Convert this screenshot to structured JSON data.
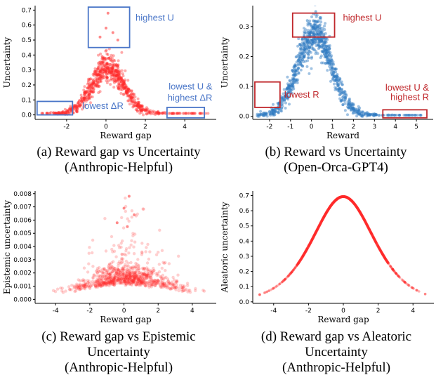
{
  "colors": {
    "red": "#ff2a2a",
    "blue": "#2e7bc0",
    "annot_blue": "#4a76c8",
    "annot_red": "#c0282c"
  },
  "chart_data": [
    {
      "id": "a",
      "type": "scatter",
      "caption": [
        "(a) Reward gap vs Uncertainty",
        "(Anthropic-Helpful)"
      ],
      "xlabel": "Reward gap",
      "ylabel": "Uncertainty",
      "xlim": [
        -3.6,
        5.6
      ],
      "ylim": [
        -0.03,
        0.73
      ],
      "xticks": [
        -2,
        0,
        2,
        4
      ],
      "yticks": [
        0.0,
        0.1,
        0.2,
        0.3,
        0.4,
        0.5,
        0.6,
        0.7
      ],
      "ytick_labels": [
        "0.0",
        "0.1",
        "0.2",
        "0.3",
        "0.4",
        "0.5",
        "0.6",
        "0.7"
      ],
      "marker_color": "red",
      "model": {
        "peak": 0.3,
        "center": 0.1,
        "width": 1.05,
        "floor": 0.01,
        "spread": 0.05,
        "n": 800,
        "xmin": -3.3,
        "xmax": 5.3
      },
      "points": [
        [
          0.1,
          0.68
        ],
        [
          0.0,
          0.58
        ],
        [
          0.35,
          0.55
        ],
        [
          -0.3,
          0.52
        ],
        [
          0.6,
          0.5
        ]
      ],
      "annotations": [
        {
          "text": "highest U",
          "box": [
            -0.9,
            0.45,
            1.2,
            0.72
          ],
          "label_at": [
            1.5,
            0.63
          ],
          "anchor": "start",
          "color": "annot_blue"
        },
        {
          "text": "lowest ΔR",
          "box": [
            -3.5,
            0.0,
            -1.7,
            0.09
          ],
          "label_at": [
            -1.2,
            0.04
          ],
          "anchor": "start",
          "color": "annot_blue"
        },
        {
          "text": "lowest U &",
          "box": [
            3.1,
            -0.02,
            5.0,
            0.05
          ],
          "label_at": [
            5.4,
            0.17
          ],
          "anchor": "end",
          "color": "annot_blue"
        },
        {
          "text": "highest ΔR",
          "label_at": [
            5.4,
            0.095
          ],
          "anchor": "end",
          "color": "annot_blue"
        }
      ]
    },
    {
      "id": "b",
      "type": "scatter",
      "caption": [
        "(b) Reward vs Uncertainty",
        "(Open-Orca-GPT4)"
      ],
      "xlabel": "Reward",
      "ylabel": "Uncertainty",
      "xlim": [
        -2.8,
        5.8
      ],
      "ylim": [
        -0.01,
        0.37
      ],
      "xticks": [
        -2,
        -1,
        0,
        1,
        2,
        3,
        4,
        5
      ],
      "yticks": [
        0.0,
        0.1,
        0.2,
        0.3
      ],
      "ytick_labels": [
        "0.0",
        "0.1",
        "0.2",
        "0.3"
      ],
      "marker_color": "blue",
      "model": {
        "peak": 0.27,
        "center": 0.15,
        "width": 1.05,
        "floor": 0.004,
        "spread": 0.035,
        "n": 900,
        "xmin": -2.6,
        "xmax": 5.3
      },
      "points": [
        [
          0.2,
          0.35
        ],
        [
          0.4,
          0.33
        ],
        [
          -0.2,
          0.32
        ]
      ],
      "annotations": [
        {
          "text": "highest U",
          "box": [
            -0.9,
            0.265,
            1.1,
            0.345
          ],
          "label_at": [
            1.5,
            0.32
          ],
          "anchor": "start",
          "color": "annot_red"
        },
        {
          "text": "lowest R",
          "box": [
            -2.7,
            0.03,
            -1.5,
            0.115
          ],
          "label_at": [
            -1.3,
            0.063
          ],
          "anchor": "start",
          "color": "annot_red"
        },
        {
          "text": "lowest U &",
          "box": [
            3.4,
            -0.005,
            5.5,
            0.022
          ],
          "label_at": [
            5.6,
            0.086
          ],
          "anchor": "end",
          "color": "annot_red"
        },
        {
          "text": "highest R",
          "label_at": [
            5.6,
            0.054
          ],
          "anchor": "end",
          "color": "annot_red"
        }
      ]
    },
    {
      "id": "c",
      "type": "scatter",
      "caption": [
        "(c) Reward gap vs Epistemic",
        "Uncertainty",
        "(Anthropic-Helpful)"
      ],
      "xlabel": "Reward gap",
      "ylabel": "Epistemic uncertainty",
      "xlim": [
        -5.2,
        5.4
      ],
      "ylim": [
        -0.0003,
        0.0082
      ],
      "xticks": [
        -4,
        -2,
        0,
        2,
        4
      ],
      "yticks": [
        0.0,
        0.001,
        0.002,
        0.003,
        0.004,
        0.005,
        0.006,
        0.007,
        0.008
      ],
      "ytick_labels": [
        "0.000",
        "0.001",
        "0.002",
        "0.003",
        "0.004",
        "0.005",
        "0.006",
        "0.007",
        "0.008"
      ],
      "marker_color": "red",
      "model": {
        "type": "cloud",
        "peak": 0.0011,
        "center": 0.2,
        "width": 1.6,
        "spread": 0.0009,
        "n": 900,
        "xmin": -4.2,
        "xmax": 4.8
      },
      "points": [
        [
          0.3,
          0.0078
        ],
        [
          0.0,
          0.0069
        ],
        [
          0.6,
          0.0064
        ],
        [
          -0.4,
          0.0058
        ],
        [
          0.2,
          0.0055
        ]
      ],
      "annotations": []
    },
    {
      "id": "d",
      "type": "line",
      "caption": [
        "(d) Reward gap vs Aleatoric",
        "Uncertainty",
        "(Anthropic-Helpful)"
      ],
      "xlabel": "Reward gap",
      "ylabel": "Aleatoric uncertainty",
      "xlim": [
        -5.2,
        5.2
      ],
      "ylim": [
        -0.01,
        0.73
      ],
      "xticks": [
        -4,
        -2,
        0,
        2,
        4
      ],
      "yticks": [
        0.0,
        0.1,
        0.2,
        0.3,
        0.4,
        0.5,
        0.6,
        0.7
      ],
      "ytick_labels": [
        "0.0",
        "0.1",
        "0.2",
        "0.3",
        "0.4",
        "0.5",
        "0.6",
        "0.7"
      ],
      "marker_color": "red",
      "model": {
        "type": "aleatoric",
        "n": 700,
        "xmin": -4.8,
        "xmax": 4.7
      },
      "annotations": []
    }
  ]
}
